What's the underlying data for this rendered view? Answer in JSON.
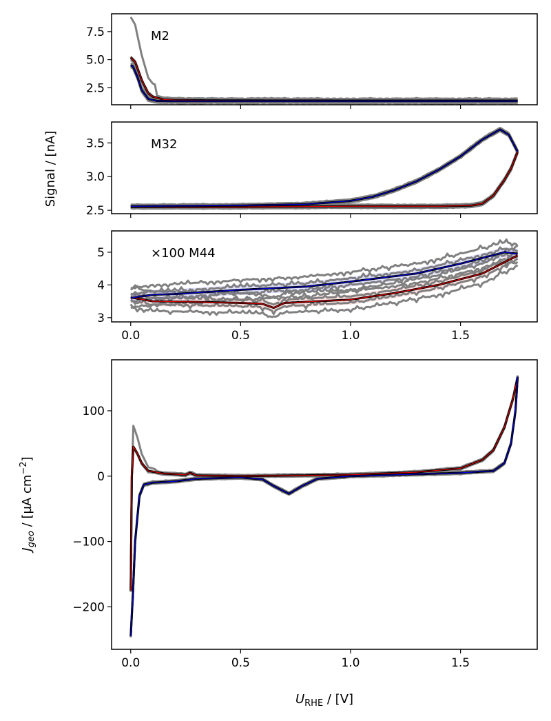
{
  "chart_data": [
    {
      "type": "line",
      "annotation": "M2",
      "ylim": [
        0.98,
        9.09
      ],
      "xlim": [
        -0.087,
        1.849
      ],
      "yticks": [
        2.5,
        5.0,
        7.5
      ],
      "ytick_labels": [
        "2.5",
        "5.0",
        "7.5"
      ],
      "cycle_spread": 0.15,
      "peak_cycle_max": 8.8,
      "anodic": {
        "color": "#ff0000",
        "x": [
          0,
          0.02,
          0.05,
          0.08,
          0.1,
          0.15,
          0.2,
          0.3,
          0.5,
          1.0,
          1.5,
          1.76
        ],
        "y": [
          5.2,
          4.8,
          3.2,
          2.0,
          1.7,
          1.45,
          1.4,
          1.38,
          1.36,
          1.35,
          1.35,
          1.35
        ]
      },
      "cathodic": {
        "color": "#0000ff",
        "x": [
          1.76,
          1.5,
          1.0,
          0.5,
          0.2,
          0.12,
          0.08,
          0.05,
          0.03,
          0.01,
          0
        ],
        "y": [
          1.3,
          1.3,
          1.3,
          1.3,
          1.3,
          1.32,
          1.5,
          2.3,
          3.5,
          4.4,
          4.5
        ]
      }
    },
    {
      "type": "line",
      "annotation": "M32",
      "ylim": [
        2.45,
        3.81
      ],
      "xlim": [
        -0.087,
        1.849
      ],
      "yticks": [
        2.5,
        3.0,
        3.5
      ],
      "ytick_labels": [
        "2.5",
        "3.0",
        "3.5"
      ],
      "cycle_spread": 0.02,
      "anodic": {
        "color": "#ff0000",
        "x": [
          0,
          0.5,
          1.0,
          1.4,
          1.55,
          1.6,
          1.65,
          1.7,
          1.73,
          1.76
        ],
        "y": [
          2.55,
          2.55,
          2.56,
          2.56,
          2.57,
          2.6,
          2.72,
          2.95,
          3.12,
          3.37
        ]
      },
      "cathodic": {
        "color": "#0000ff",
        "x": [
          1.76,
          1.72,
          1.68,
          1.6,
          1.5,
          1.4,
          1.3,
          1.2,
          1.1,
          1.0,
          0.8,
          0.5,
          0
        ],
        "y": [
          3.37,
          3.62,
          3.7,
          3.55,
          3.3,
          3.1,
          2.93,
          2.8,
          2.7,
          2.64,
          2.59,
          2.57,
          2.56
        ]
      }
    },
    {
      "type": "line",
      "annotation": "×100 M44",
      "ylim": [
        2.87,
        5.65
      ],
      "xlim": [
        -0.087,
        1.849
      ],
      "yticks": [
        3,
        4,
        5
      ],
      "ytick_labels": [
        "3",
        "4",
        "5"
      ],
      "cycle_spread": 0.25,
      "anodic": {
        "color": "#ff0000",
        "x": [
          0,
          0.1,
          0.3,
          0.5,
          0.6,
          0.65,
          0.7,
          1.0,
          1.2,
          1.4,
          1.6,
          1.76
        ],
        "y": [
          3.62,
          3.5,
          3.48,
          3.45,
          3.42,
          3.3,
          3.45,
          3.55,
          3.75,
          4.0,
          4.35,
          4.9
        ]
      },
      "cathodic": {
        "color": "#0000ff",
        "x": [
          1.76,
          1.7,
          1.5,
          1.3,
          1.0,
          0.8,
          0.5,
          0.2,
          0.1,
          0
        ],
        "y": [
          4.95,
          5.0,
          4.65,
          4.35,
          4.1,
          3.95,
          3.85,
          3.72,
          3.7,
          3.6
        ]
      }
    },
    {
      "type": "line",
      "ylim": [
        -265,
        178
      ],
      "xlim": [
        -0.087,
        1.849
      ],
      "yticks": [
        -200,
        -100,
        0,
        100
      ],
      "ytick_labels": [
        "−200",
        "−100",
        "0",
        "100"
      ],
      "xticks": [
        0.0,
        0.5,
        1.0,
        1.5
      ],
      "xtick_labels": [
        "0.0",
        "0.5",
        "1.0",
        "1.5"
      ],
      "cycle_spread": 1.5,
      "peak_cycle_max": 77,
      "anodic": {
        "color": "#ff0000",
        "x": [
          0,
          0.005,
          0.012,
          0.03,
          0.05,
          0.08,
          0.15,
          0.25,
          0.27,
          0.3,
          0.5,
          1.0,
          1.3,
          1.5,
          1.6,
          1.65,
          1.7,
          1.74,
          1.76
        ],
        "y": [
          -175,
          0,
          45,
          35,
          20,
          8,
          4,
          2,
          5,
          1,
          0,
          2,
          6,
          12,
          25,
          40,
          75,
          120,
          152
        ]
      },
      "cathodic": {
        "color": "#0000ff",
        "x": [
          1.76,
          1.75,
          1.73,
          1.7,
          1.65,
          1.5,
          1.2,
          1.0,
          0.85,
          0.78,
          0.72,
          0.65,
          0.6,
          0.5,
          0.3,
          0.2,
          0.1,
          0.06,
          0.04,
          0.02,
          0.01,
          0
        ],
        "y": [
          152,
          100,
          50,
          20,
          8,
          5,
          2,
          0,
          -4,
          -15,
          -27,
          -15,
          -5,
          -2,
          -4,
          -8,
          -10,
          -13,
          -30,
          -100,
          -180,
          -245
        ]
      }
    }
  ],
  "labels": {
    "signal_ylabel": "Signal / [nA]",
    "j_ylabel_main": "J",
    "j_ylabel_sub": "geo",
    "j_ylabel_rest": " / [µA cm",
    "j_ylabel_sup": "−2",
    "j_ylabel_end": "]",
    "xlabel_main": "U",
    "xlabel_sub": "RHE",
    "xlabel_rest": " / [V]"
  },
  "colors": {
    "cycles": "#808080",
    "mean": "#000000",
    "anodic": "#ff0000",
    "cathodic": "#0000ff"
  }
}
